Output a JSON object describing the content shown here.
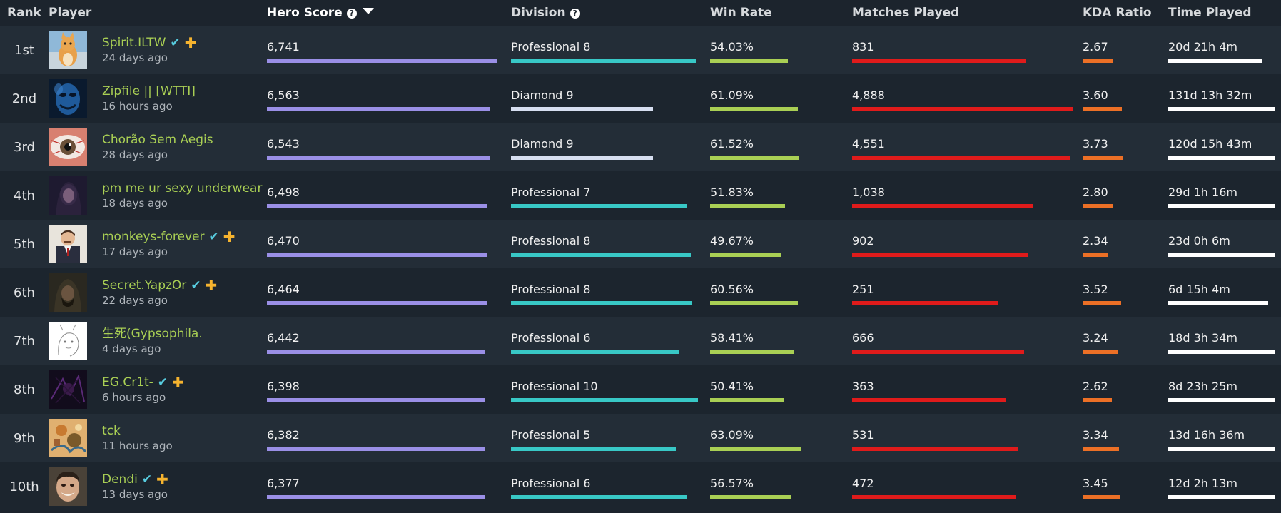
{
  "headers": {
    "rank": "Rank",
    "player": "Player",
    "hero_score": "Hero Score",
    "division": "Division",
    "win_rate": "Win Rate",
    "matches_played": "Matches Played",
    "kda_ratio": "KDA Ratio",
    "time_played": "Time Played"
  },
  "colors": {
    "hero_score": "#9a8fe6",
    "division_professional": "#38c8c6",
    "division_diamond": "#d6def0",
    "win_rate": "#a9cf54",
    "matches_played": "#e01b1b",
    "kda_ratio": "#ec7026",
    "time_played": "#ffffff",
    "player_name": "#a9cf54",
    "verified": "#57cbde",
    "plus": "#f5b32f"
  },
  "rows": [
    {
      "rank": "1st",
      "avatar": "cat-avatar",
      "name": "Spirit.ILTW",
      "verified": true,
      "plus": true,
      "last_seen": "24 days ago",
      "hero_score": "6,741",
      "hero_score_fill": 1.0,
      "division": "Professional 8",
      "division_tier": "professional",
      "division_fill": 0.99,
      "win_rate": "54.03%",
      "win_rate_fill": 0.86,
      "matches_played": "831",
      "matches_played_fill": 0.79,
      "kda_ratio": "2.67",
      "kda_ratio_fill": 0.73,
      "time_played": "20d 21h 4m",
      "time_played_fill": 0.88
    },
    {
      "rank": "2nd",
      "avatar": "blue-face-avatar",
      "name": "Zipfile || [WTTI]",
      "verified": false,
      "plus": false,
      "last_seen": "16 hours ago",
      "hero_score": "6,563",
      "hero_score_fill": 0.97,
      "division": "Diamond 9",
      "division_tier": "diamond",
      "division_fill": 0.76,
      "win_rate": "61.09%",
      "win_rate_fill": 0.97,
      "matches_played": "4,888",
      "matches_played_fill": 1.0,
      "kda_ratio": "3.60",
      "kda_ratio_fill": 0.96,
      "time_played": "131d 13h 32m",
      "time_played_fill": 1.0
    },
    {
      "rank": "3rd",
      "avatar": "eye-avatar",
      "name": "Chorão Sem Aegis",
      "verified": false,
      "plus": false,
      "last_seen": "28 days ago",
      "hero_score": "6,543",
      "hero_score_fill": 0.97,
      "division": "Diamond 9",
      "division_tier": "diamond",
      "division_fill": 0.76,
      "win_rate": "61.52%",
      "win_rate_fill": 0.98,
      "matches_played": "4,551",
      "matches_played_fill": 0.99,
      "kda_ratio": "3.73",
      "kda_ratio_fill": 1.0,
      "time_played": "120d 15h 43m",
      "time_played_fill": 1.0
    },
    {
      "rank": "4th",
      "avatar": "dark-portrait-avatar",
      "name": "pm me ur sexy underwear",
      "verified": false,
      "plus": false,
      "last_seen": "18 days ago",
      "hero_score": "6,498",
      "hero_score_fill": 0.96,
      "division": "Professional 7",
      "division_tier": "professional",
      "division_fill": 0.94,
      "win_rate": "51.83%",
      "win_rate_fill": 0.83,
      "matches_played": "1,038",
      "matches_played_fill": 0.82,
      "kda_ratio": "2.80",
      "kda_ratio_fill": 0.76,
      "time_played": "29d 1h 16m",
      "time_played_fill": 1.0
    },
    {
      "rank": "5th",
      "avatar": "suit-man-avatar",
      "name": "monkeys-forever",
      "verified": true,
      "plus": true,
      "last_seen": "17 days ago",
      "hero_score": "6,470",
      "hero_score_fill": 0.96,
      "division": "Professional 8",
      "division_tier": "professional",
      "division_fill": 0.96,
      "win_rate": "49.67%",
      "win_rate_fill": 0.79,
      "matches_played": "902",
      "matches_played_fill": 0.8,
      "kda_ratio": "2.34",
      "kda_ratio_fill": 0.64,
      "time_played": "23d 0h 6m",
      "time_played_fill": 1.0
    },
    {
      "rank": "6th",
      "avatar": "hooded-figure-avatar",
      "name": "Secret.YapzOr",
      "verified": true,
      "plus": true,
      "last_seen": "22 days ago",
      "hero_score": "6,464",
      "hero_score_fill": 0.96,
      "division": "Professional 8",
      "division_tier": "professional",
      "division_fill": 0.97,
      "win_rate": "60.56%",
      "win_rate_fill": 0.97,
      "matches_played": "251",
      "matches_played_fill": 0.66,
      "kda_ratio": "3.52",
      "kda_ratio_fill": 0.94,
      "time_played": "6d 15h 4m",
      "time_played_fill": 0.93
    },
    {
      "rank": "7th",
      "avatar": "sketch-avatar",
      "name": "生死(Gypsophila.",
      "verified": false,
      "plus": false,
      "last_seen": "4 days ago",
      "hero_score": "6,442",
      "hero_score_fill": 0.95,
      "division": "Professional 6",
      "division_tier": "professional",
      "division_fill": 0.9,
      "win_rate": "58.41%",
      "win_rate_fill": 0.93,
      "matches_played": "666",
      "matches_played_fill": 0.78,
      "kda_ratio": "3.24",
      "kda_ratio_fill": 0.87,
      "time_played": "18d 3h 34m",
      "time_played_fill": 1.0
    },
    {
      "rank": "8th",
      "avatar": "purple-dark-avatar",
      "name": "EG.Cr1t-",
      "verified": true,
      "plus": true,
      "last_seen": "6 hours ago",
      "hero_score": "6,398",
      "hero_score_fill": 0.95,
      "division": "Professional 10",
      "division_tier": "professional",
      "division_fill": 1.0,
      "win_rate": "50.41%",
      "win_rate_fill": 0.81,
      "matches_played": "363",
      "matches_played_fill": 0.7,
      "kda_ratio": "2.62",
      "kda_ratio_fill": 0.72,
      "time_played": "8d 23h 25m",
      "time_played_fill": 1.0
    },
    {
      "rank": "9th",
      "avatar": "painting-avatar",
      "name": "tck",
      "verified": false,
      "plus": false,
      "last_seen": "11 hours ago",
      "hero_score": "6,382",
      "hero_score_fill": 0.95,
      "division": "Professional 5",
      "division_tier": "professional",
      "division_fill": 0.88,
      "win_rate": "63.09%",
      "win_rate_fill": 1.0,
      "matches_played": "531",
      "matches_played_fill": 0.75,
      "kda_ratio": "3.34",
      "kda_ratio_fill": 0.9,
      "time_played": "13d 16h 36m",
      "time_played_fill": 1.0
    },
    {
      "rank": "10th",
      "avatar": "grinning-man-avatar",
      "name": "Dendi",
      "verified": true,
      "plus": true,
      "last_seen": "13 days ago",
      "hero_score": "6,377",
      "hero_score_fill": 0.95,
      "division": "Professional 6",
      "division_tier": "professional",
      "division_fill": 0.94,
      "win_rate": "56.57%",
      "win_rate_fill": 0.89,
      "matches_played": "472",
      "matches_played_fill": 0.74,
      "kda_ratio": "3.45",
      "kda_ratio_fill": 0.93,
      "time_played": "12d 2h 13m",
      "time_played_fill": 1.0
    }
  ]
}
